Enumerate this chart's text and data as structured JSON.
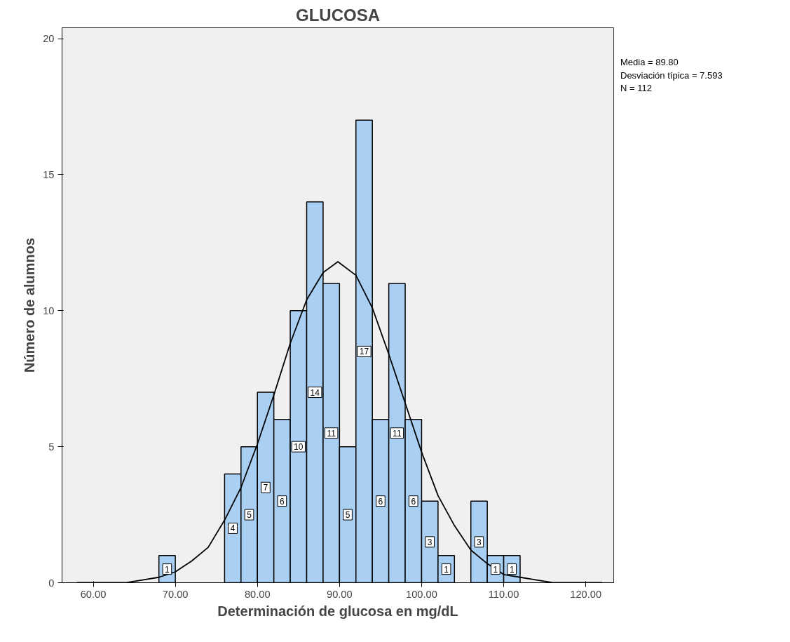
{
  "chart_data": {
    "type": "histogram",
    "title": "GLUCOSA",
    "xlabel": "Determinación de glucosa en mg/dL",
    "ylabel": "Número de alumnos",
    "bins": [
      68,
      70,
      72,
      74,
      76,
      78,
      80,
      82,
      84,
      86,
      88,
      90,
      92,
      94,
      96,
      98,
      100,
      102,
      104,
      106,
      108,
      110,
      112
    ],
    "values": [
      1,
      0,
      0,
      0,
      4,
      5,
      7,
      6,
      10,
      14,
      11,
      5,
      17,
      6,
      11,
      6,
      3,
      1,
      0,
      3,
      1,
      1
    ],
    "color": "#a9d0f2",
    "value_labels": [
      "1",
      null,
      null,
      null,
      "4",
      "5",
      "7",
      "6",
      "10",
      "14",
      "11",
      "5",
      "17",
      "6",
      "11",
      "6",
      "3",
      "1",
      null,
      "3",
      "1",
      "1"
    ],
    "series": [
      {
        "type": "line",
        "color": "#000000",
        "x": [
          58,
          60,
          62,
          64,
          66,
          68,
          70,
          72,
          74,
          76,
          78,
          80,
          82,
          84,
          86,
          88,
          89.8,
          92,
          94,
          96,
          98,
          100,
          102,
          104,
          106,
          108,
          110,
          112,
          114,
          116,
          118,
          120,
          122
        ],
        "values": [
          0,
          0,
          0,
          0,
          0.1,
          0.2,
          0.4,
          0.8,
          1.3,
          2.3,
          3.5,
          5.1,
          6.9,
          8.8,
          10.4,
          11.4,
          11.8,
          11.3,
          10.1,
          8.4,
          6.6,
          4.8,
          3.2,
          2.1,
          1.2,
          0.7,
          0.3,
          0.2,
          0.1,
          0,
          0,
          0,
          0
        ]
      }
    ],
    "annotations": [
      "Media = 89.80",
      "Desviación típica = 7.593",
      "N = 112"
    ],
    "xlim": [
      56.2,
      123.4
    ],
    "ylim": [
      0,
      20.4
    ],
    "xticks": [
      {
        "value": 60,
        "label": "60.00"
      },
      {
        "value": 70,
        "label": "70.00"
      },
      {
        "value": 80,
        "label": "80.00"
      },
      {
        "value": 90,
        "label": "90.00"
      },
      {
        "value": 100,
        "label": "100.00"
      },
      {
        "value": 110,
        "label": "110.00"
      },
      {
        "value": 120,
        "label": "120.00"
      }
    ],
    "yticks": [
      0,
      5,
      10,
      15,
      20
    ],
    "grid": false
  }
}
